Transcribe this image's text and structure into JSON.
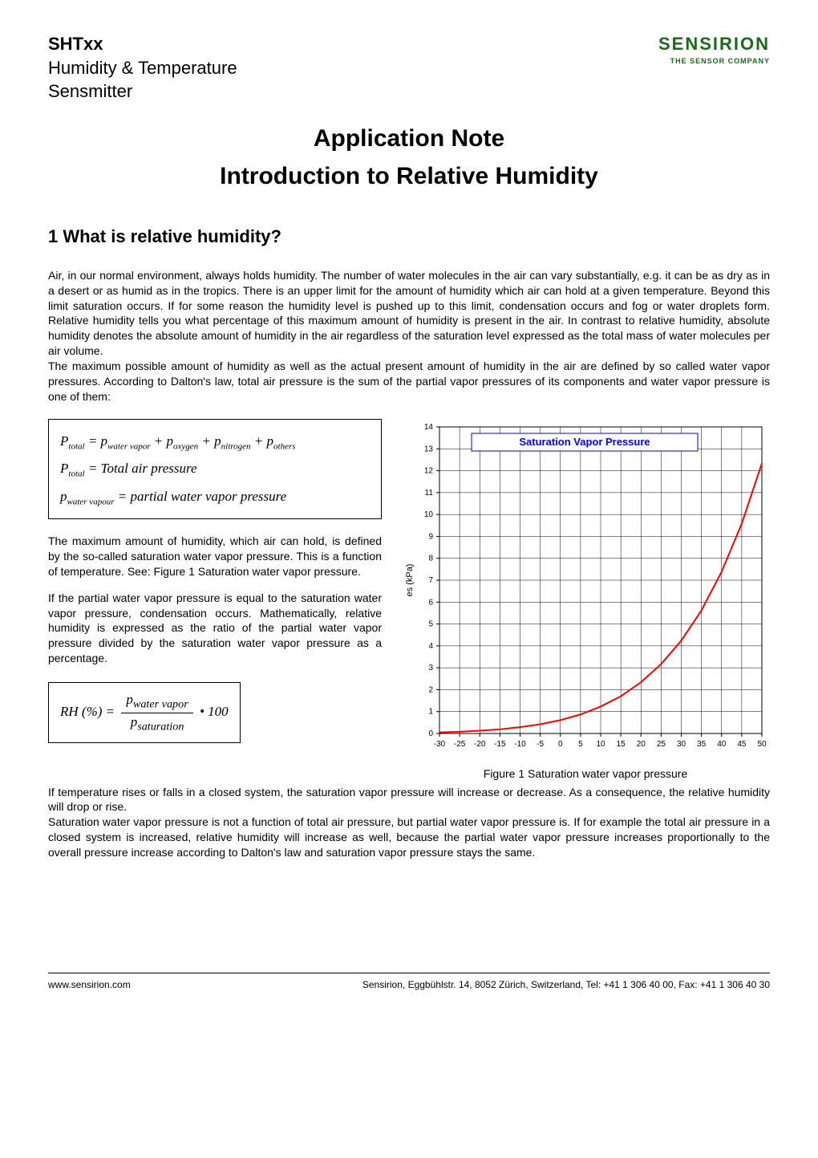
{
  "header": {
    "product": "SHTxx",
    "subtitle1": "Humidity & Temperature",
    "subtitle2": "Sensmitter",
    "logo_main": "SENSIRION",
    "logo_sub": "THE SENSOR COMPANY",
    "logo_color": "#1a6b1a"
  },
  "title": {
    "line1": "Application Note",
    "line2": "Introduction to Relative Humidity"
  },
  "section1": {
    "heading": "1   What is relative humidity?",
    "para1": "Air, in our normal environment, always holds humidity. The number of water molecules in the air can vary substantially, e.g. it can be as dry as in a desert or as humid as in the tropics. There is an upper limit for the amount of humidity which air can hold at a given temperature. Beyond this limit saturation occurs. If for some reason the humidity level is pushed up to this limit, condensation occurs and fog or water droplets form. Relative humidity tells you what percentage of this maximum amount of humidity is present in the air. In contrast to relative humidity, absolute humidity denotes the absolute amount of humidity in the air regardless of the saturation level expressed as the total mass of water molecules per air volume.",
    "para2": "The maximum possible amount of humidity as well as the actual present amount of humidity in the air are defined by so called water vapor pressures. According to Dalton's law, total air pressure is the sum of the partial vapor pressures of its components and water vapor pressure is one of them:",
    "left_para1": "The maximum amount of humidity, which air can hold, is defined by the so-called saturation water vapor pressure. This is a function of temperature. See: Figure 1 Saturation water vapor pressure.",
    "left_para2": "If the partial water vapor pressure is equal to the saturation water vapor pressure, condensation occurs. Mathematically, relative humidity is expressed as the ratio of the partial water vapor pressure divided by the saturation water vapor pressure as a percentage.",
    "after_para1": "If temperature rises or falls in a closed system, the saturation vapor pressure will increase or decrease. As a consequence, the relative humidity will drop or rise.",
    "after_para2": "Saturation water vapor pressure is not a function of total air pressure, but partial water vapor pressure is. If for example the total air pressure in a closed system is increased, relative humidity will increase as well, because the partial water vapor pressure increases proportionally to the overall pressure increase according to Dalton's law and saturation vapor pressure stays the same."
  },
  "formula_box": {
    "line1_lhs": "P",
    "line1_lhs_sub": "total",
    "line1_rhs_p1": "p",
    "line1_rhs_s1": "water vapor",
    "line1_rhs_p2": "p",
    "line1_rhs_s2": "oxygen",
    "line1_rhs_p3": "p",
    "line1_rhs_s3": "nitrogen",
    "line1_rhs_p4": "p",
    "line1_rhs_s4": "others",
    "line2_lhs": "P",
    "line2_lhs_sub": "total",
    "line2_rhs": "Total air pressure",
    "line3_lhs": "p",
    "line3_lhs_sub": "water vapour",
    "line3_rhs": "partial water vapor pressure"
  },
  "formula_small": {
    "lhs": "RH",
    "lhs_pct": "(%)",
    "num_p": "p",
    "num_sub": "water vapor",
    "den_p": "p",
    "den_sub": "saturation",
    "tail": "• 100"
  },
  "chart": {
    "type": "line",
    "legend_label": "Saturation Vapor Pressure",
    "legend_box_border": "#0000ff",
    "legend_text_color": "#0000ff",
    "line_color": "#ff0000",
    "line_width": 2,
    "grid_color": "#000000",
    "grid_width": 0.5,
    "axis_color": "#000000",
    "background_color": "#ffffff",
    "tick_fontsize": 10,
    "ylabel": "es (kPa)",
    "ylabel_fontsize": 11,
    "xlim": [
      -30,
      50
    ],
    "ylim": [
      0,
      14
    ],
    "xticks": [
      -30,
      -25,
      -20,
      -15,
      -10,
      -5,
      0,
      5,
      10,
      15,
      20,
      25,
      30,
      35,
      40,
      45,
      50
    ],
    "yticks": [
      0,
      1,
      2,
      3,
      4,
      5,
      6,
      7,
      8,
      9,
      10,
      11,
      12,
      13,
      14
    ],
    "x_values": [
      -30,
      -25,
      -20,
      -15,
      -10,
      -5,
      0,
      5,
      10,
      15,
      20,
      25,
      30,
      35,
      40,
      45,
      50
    ],
    "y_values": [
      0.05,
      0.08,
      0.13,
      0.19,
      0.29,
      0.42,
      0.61,
      0.87,
      1.23,
      1.7,
      2.34,
      3.17,
      4.24,
      5.62,
      7.38,
      9.58,
      12.34
    ],
    "caption": "Figure 1 Saturation water vapor pressure"
  },
  "footer": {
    "left": "www.sensirion.com",
    "right": "Sensirion, Eggbühlstr. 14, 8052 Zürich, Switzerland, Tel: +41 1 306 40 00, Fax: +41 1 306 40 30"
  }
}
